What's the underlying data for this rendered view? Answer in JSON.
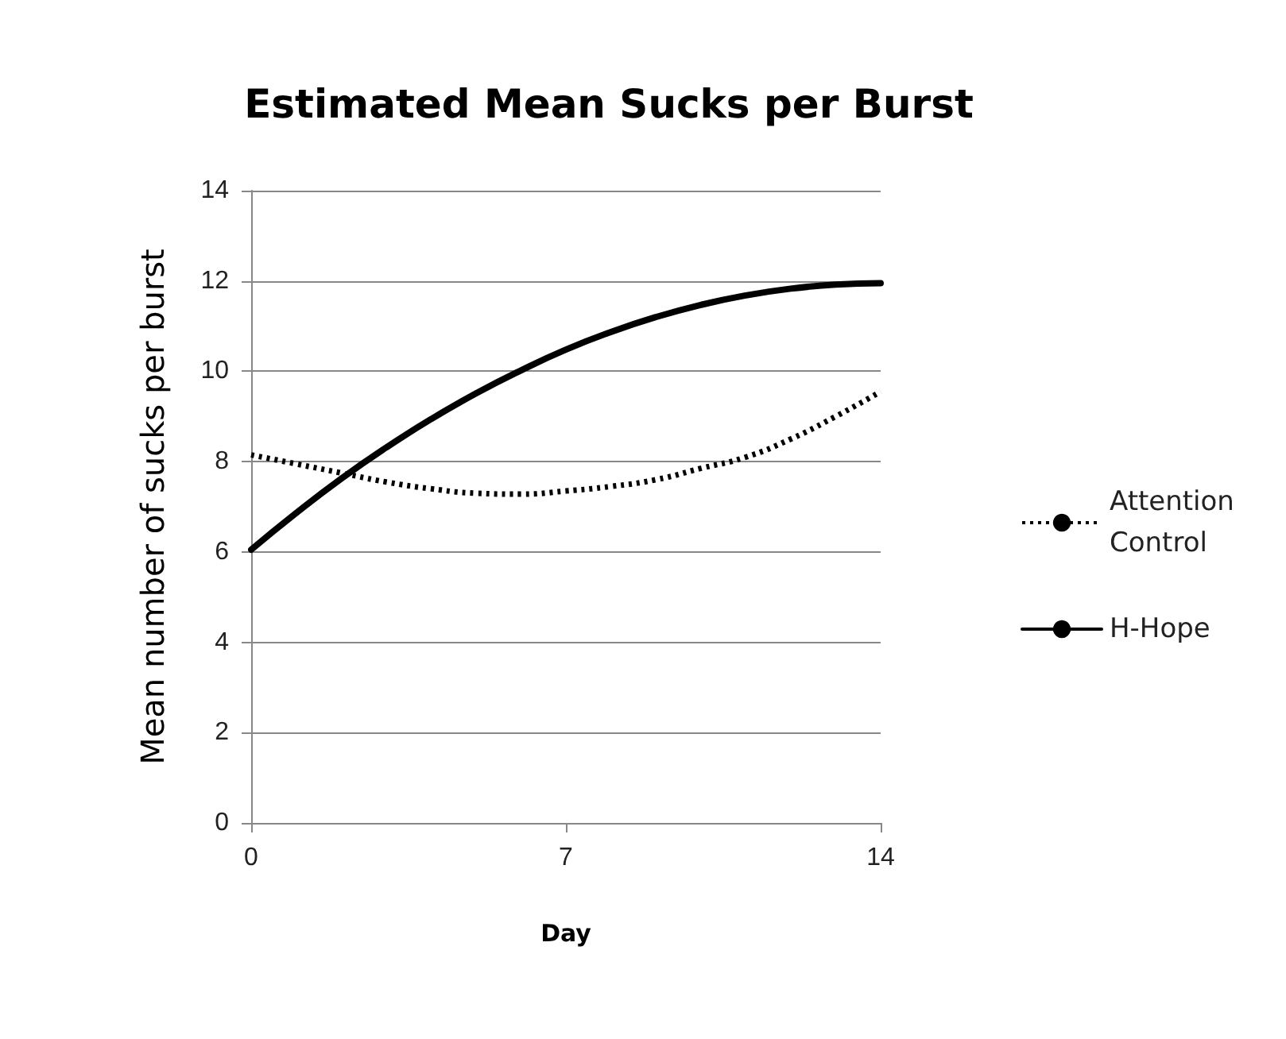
{
  "chart_data": {
    "type": "line",
    "title": "Estimated Mean Sucks per Burst",
    "xlabel": "Day",
    "ylabel": "Mean number of sucks per burst",
    "x": [
      0,
      1,
      2,
      3,
      4,
      5,
      6,
      7,
      8,
      9,
      10,
      11,
      12,
      13,
      14
    ],
    "series": [
      {
        "name": "Attention Control",
        "color": "#000000",
        "line_style": "dotted",
        "values": [
          8.15,
          7.95,
          7.75,
          7.55,
          7.4,
          7.3,
          7.28,
          7.35,
          7.45,
          7.6,
          7.85,
          8.1,
          8.5,
          9.0,
          9.55
        ]
      },
      {
        "name": "H-Hope",
        "color": "#000000",
        "line_style": "solid",
        "values": [
          6.05,
          6.86,
          7.62,
          8.31,
          8.94,
          9.51,
          10.02,
          10.48,
          10.87,
          11.2,
          11.47,
          11.68,
          11.83,
          11.92,
          11.95
        ]
      }
    ],
    "xlim": [
      0,
      14
    ],
    "xticks": [
      0,
      7,
      14
    ],
    "ylim": [
      0,
      14
    ],
    "yticks": [
      0,
      2,
      4,
      6,
      8,
      10,
      12,
      14
    ],
    "grid": "y",
    "legend": "right",
    "marker": "none"
  }
}
